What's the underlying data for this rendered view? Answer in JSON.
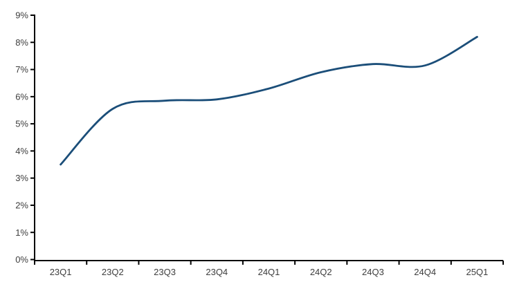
{
  "chart_data": {
    "type": "line",
    "title": "",
    "xlabel": "",
    "ylabel": "",
    "categories": [
      "23Q1",
      "23Q2",
      "23Q3",
      "23Q4",
      "24Q1",
      "24Q2",
      "24Q3",
      "24Q4",
      "25Q1"
    ],
    "series": [
      {
        "name": "rate",
        "values": [
          3.5,
          5.55,
          5.85,
          5.9,
          6.3,
          6.9,
          7.2,
          7.15,
          8.2
        ]
      }
    ],
    "ylim": [
      0,
      9
    ],
    "y_ticks": [
      "0%",
      "1%",
      "2%",
      "3%",
      "4%",
      "5%",
      "6%",
      "7%",
      "8%",
      "9%"
    ],
    "grid": false,
    "legend_position": "none",
    "line_color": "#1b4e79",
    "axis_color": "#000000",
    "tick_label_color": "#3d3d3d"
  }
}
